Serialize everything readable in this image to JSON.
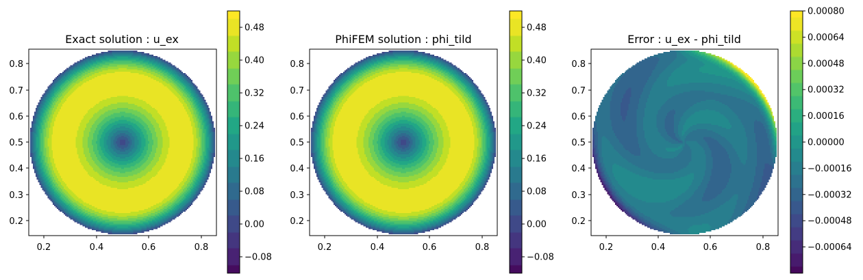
{
  "chart_data": [
    {
      "type": "heatmap",
      "title": "Exact solution : u_ex",
      "xlabel": "",
      "ylabel": "",
      "xlim": [
        0.142,
        0.858
      ],
      "ylim": [
        0.142,
        0.858
      ],
      "xticks": [
        "0.2",
        "0.4",
        "0.6",
        "0.8"
      ],
      "yticks": [
        "0.2",
        "0.3",
        "0.4",
        "0.5",
        "0.6",
        "0.7",
        "0.8"
      ],
      "domain": {
        "shape": "disk",
        "center": [
          0.5,
          0.5
        ],
        "radius": 0.355
      },
      "field": {
        "center_value": -0.02,
        "peak_value": 0.5,
        "peak_radius": 0.237,
        "boundary_value": 0.0
      },
      "colormap": "viridis",
      "colorbar": {
        "min": -0.12,
        "max": 0.52,
        "ticks": [
          -0.08,
          0.0,
          0.08,
          0.16,
          0.24,
          0.32,
          0.4,
          0.48
        ],
        "tick_labels": [
          "−0.08",
          "0.00",
          "0.08",
          "0.16",
          "0.24",
          "0.32",
          "0.40",
          "0.48"
        ]
      }
    },
    {
      "type": "heatmap",
      "title": "PhiFEM solution : phi_tild",
      "xlabel": "",
      "ylabel": "",
      "xlim": [
        0.142,
        0.858
      ],
      "ylim": [
        0.142,
        0.858
      ],
      "xticks": [
        "0.2",
        "0.4",
        "0.6",
        "0.8"
      ],
      "yticks": [
        "0.2",
        "0.3",
        "0.4",
        "0.5",
        "0.6",
        "0.7",
        "0.8"
      ],
      "domain": {
        "shape": "disk",
        "center": [
          0.5,
          0.5
        ],
        "radius": 0.355
      },
      "field": {
        "center_value": -0.02,
        "peak_value": 0.5,
        "peak_radius": 0.237,
        "boundary_value": 0.0
      },
      "colormap": "viridis",
      "colorbar": {
        "min": -0.12,
        "max": 0.52,
        "ticks": [
          -0.08,
          0.0,
          0.08,
          0.16,
          0.24,
          0.32,
          0.4,
          0.48
        ],
        "tick_labels": [
          "−0.08",
          "0.00",
          "0.08",
          "0.16",
          "0.24",
          "0.32",
          "0.40",
          "0.48"
        ]
      }
    },
    {
      "type": "heatmap",
      "title": "Error : u_ex - phi_tild",
      "xlabel": "",
      "ylabel": "",
      "xlim": [
        0.142,
        0.858
      ],
      "ylim": [
        0.142,
        0.858
      ],
      "xticks": [
        "0.2",
        "0.4",
        "0.6",
        "0.8"
      ],
      "yticks": [
        "0.2",
        "0.3",
        "0.4",
        "0.5",
        "0.6",
        "0.7",
        "0.8"
      ],
      "domain": {
        "shape": "disk",
        "center": [
          0.5,
          0.5
        ],
        "radius": 0.355
      },
      "field": {
        "base_value": -0.0002,
        "wave_amplitude": 0.00012,
        "edge_max": 0.0008,
        "edge_min": -0.00078
      },
      "colormap": "viridis",
      "colorbar": {
        "min": -0.0008,
        "max": 0.0008,
        "ticks": [
          -0.00064,
          -0.00048,
          -0.00032,
          -0.00016,
          0.0,
          0.00016,
          0.00032,
          0.00048,
          0.00064,
          0.0008
        ],
        "tick_labels": [
          "−0.00064",
          "−0.00048",
          "−0.00032",
          "−0.00016",
          "0.00000",
          "0.00016",
          "0.00032",
          "0.00048",
          "0.00064",
          "0.00080"
        ]
      }
    }
  ]
}
